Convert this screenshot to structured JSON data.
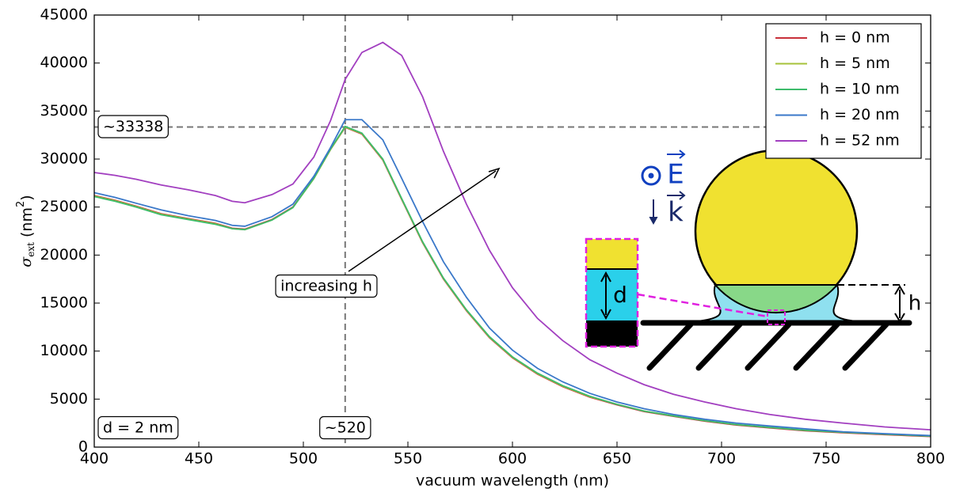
{
  "chart_data": {
    "type": "line",
    "x_label": "vacuum wavelength (nm)",
    "y_label": [
      "σ",
      "ext",
      " (nm",
      "2",
      ")"
    ],
    "x": [
      400,
      410,
      420,
      432,
      445,
      458,
      466,
      472,
      485,
      495,
      505,
      513,
      520,
      528,
      538,
      547,
      557,
      567,
      578,
      589,
      600,
      612,
      624,
      637,
      650,
      663,
      677,
      692,
      707,
      723,
      740,
      758,
      778,
      800
    ],
    "series": [
      {
        "name": "h = 0 nm",
        "color": "#c8303a",
        "values": [
          26200,
          25700,
          25100,
          24300,
          23800,
          23300,
          22800,
          22700,
          23700,
          25000,
          28000,
          31000,
          33300,
          32600,
          29900,
          25800,
          21300,
          17500,
          14200,
          11400,
          9300,
          7600,
          6300,
          5200,
          4400,
          3700,
          3200,
          2700,
          2300,
          2000,
          1700,
          1500,
          1300,
          1100
        ]
      },
      {
        "name": "h = 5 nm",
        "color": "#a6c23a",
        "values": [
          26150,
          25650,
          25050,
          24250,
          23750,
          23250,
          22750,
          22650,
          23650,
          24950,
          27950,
          31000,
          33330,
          32650,
          29950,
          25850,
          21350,
          17550,
          14250,
          11450,
          9350,
          7650,
          6350,
          5250,
          4450,
          3750,
          3250,
          2750,
          2350,
          2050,
          1750,
          1550,
          1350,
          1150
        ]
      },
      {
        "name": "h = 10 nm",
        "color": "#3dbb6b",
        "values": [
          26100,
          25600,
          25000,
          24200,
          23700,
          23200,
          22750,
          22650,
          23650,
          24950,
          28000,
          31050,
          33400,
          32700,
          30000,
          25900,
          21400,
          17600,
          14300,
          11500,
          9400,
          7700,
          6400,
          5300,
          4450,
          3750,
          3250,
          2750,
          2350,
          2050,
          1750,
          1550,
          1350,
          1150
        ]
      },
      {
        "name": "h = 20 nm",
        "color": "#3a78c9",
        "values": [
          26500,
          26000,
          25400,
          24700,
          24100,
          23600,
          23100,
          23000,
          24000,
          25300,
          28200,
          31200,
          34100,
          34100,
          32000,
          28000,
          23500,
          19300,
          15600,
          12400,
          10100,
          8200,
          6800,
          5600,
          4700,
          4000,
          3400,
          2900,
          2500,
          2200,
          1900,
          1600,
          1400,
          1200
        ]
      },
      {
        "name": "h = 52 nm",
        "color": "#a23fc0",
        "values": [
          28600,
          28300,
          27900,
          27300,
          26800,
          26200,
          25600,
          25450,
          26300,
          27400,
          30200,
          34000,
          38300,
          41100,
          42150,
          40800,
          36500,
          30800,
          25300,
          20500,
          16600,
          13400,
          11100,
          9100,
          7700,
          6500,
          5500,
          4700,
          4000,
          3400,
          2900,
          2500,
          2100,
          1800
        ]
      }
    ],
    "xlim": [
      400,
      800
    ],
    "xticks": [
      400,
      450,
      500,
      550,
      600,
      650,
      700,
      750,
      800
    ],
    "ylim": [
      0,
      45000
    ],
    "yticks": [
      0,
      5000,
      10000,
      15000,
      20000,
      25000,
      30000,
      35000,
      40000,
      45000
    ],
    "grid": false,
    "legend": "upper right",
    "reference_lines": [
      {
        "axis": "y",
        "value": 33338,
        "label": "~33338"
      },
      {
        "axis": "x",
        "value": 520,
        "label": "~520"
      }
    ],
    "annotations": {
      "d_value": "d = 2 nm",
      "arrow_text": "increasing h"
    },
    "inset_labels": {
      "E": "E",
      "k": "k",
      "d": "d",
      "h": "h"
    }
  }
}
